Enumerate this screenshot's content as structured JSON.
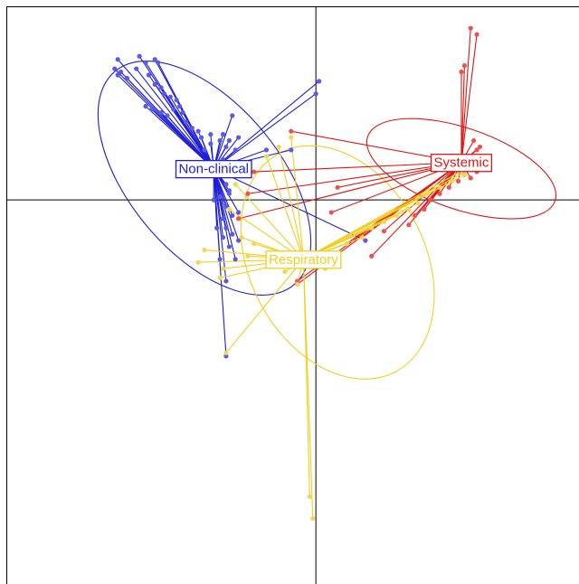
{
  "chart_data": {
    "type": "scatter",
    "title": "",
    "xlabel": "",
    "ylabel": "",
    "grid": false,
    "legend": "none",
    "xlim": [
      -1.0,
      0.85
    ],
    "ylim": [
      -1.23,
      0.62
    ],
    "groups": [
      {
        "name": "Non-clinical",
        "color": "#1f1fd6",
        "point_color": "#5a5ae6",
        "centroid": [
          -0.33,
          0.1
        ],
        "ellipse": {
          "cx": -0.36,
          "cy": 0.07,
          "rx": 0.45,
          "ry": 0.24,
          "angle_deg": 50
        },
        "points": [
          [
            -0.64,
            0.45
          ],
          [
            -0.65,
            0.42
          ],
          [
            -0.64,
            0.4
          ],
          [
            -0.63,
            0.41
          ],
          [
            -0.61,
            0.39
          ],
          [
            -0.58,
            0.42
          ],
          [
            -0.57,
            0.46
          ],
          [
            -0.55,
            0.44
          ],
          [
            -0.52,
            0.45
          ],
          [
            -0.51,
            0.44
          ],
          [
            -0.54,
            0.4
          ],
          [
            -0.52,
            0.37
          ],
          [
            -0.5,
            0.36
          ],
          [
            -0.49,
            0.34
          ],
          [
            -0.47,
            0.33
          ],
          [
            -0.45,
            0.32
          ],
          [
            -0.55,
            0.3
          ],
          [
            -0.53,
            0.29
          ],
          [
            -0.5,
            0.28
          ],
          [
            -0.48,
            0.27
          ],
          [
            -0.46,
            0.29
          ],
          [
            -0.44,
            0.3
          ],
          [
            -0.43,
            0.28
          ],
          [
            -0.42,
            0.25
          ],
          [
            -0.4,
            0.23
          ],
          [
            -0.38,
            0.22
          ],
          [
            -0.37,
            0.2
          ],
          [
            -0.34,
            0.21
          ],
          [
            -0.31,
            0.19
          ],
          [
            -0.29,
            0.17
          ],
          [
            0.01,
            0.38
          ],
          [
            0.0,
            0.34
          ],
          [
            -0.27,
            0.27
          ],
          [
            -0.16,
            0.16
          ],
          [
            -0.3,
            0.13
          ],
          [
            -0.33,
            0.11
          ],
          [
            -0.3,
            0.08
          ],
          [
            -0.29,
            0.05
          ],
          [
            -0.28,
            0.03
          ],
          [
            -0.28,
            0.02
          ],
          [
            -0.31,
            0.01
          ],
          [
            -0.29,
            -0.02
          ],
          [
            -0.27,
            -0.05
          ],
          [
            -0.3,
            -0.06
          ],
          [
            -0.29,
            -0.09
          ],
          [
            -0.27,
            -0.11
          ],
          [
            -0.28,
            -0.15
          ],
          [
            -0.31,
            -0.19
          ],
          [
            -0.29,
            -0.26
          ],
          [
            -0.25,
            -0.13
          ],
          [
            -0.26,
            -0.19
          ],
          [
            -0.25,
            -0.04
          ],
          [
            0.16,
            -0.13
          ],
          [
            -0.08,
            0.16
          ],
          [
            -0.25,
            0.2
          ],
          [
            -0.26,
            0.16
          ],
          [
            -0.28,
            0.19
          ],
          [
            -0.3,
            0.21
          ],
          [
            -0.34,
            0.18
          ],
          [
            -0.36,
            0.16
          ],
          [
            -0.29,
            -0.5
          ],
          [
            -0.24,
            0.11
          ],
          [
            -0.33,
            0.0
          ],
          [
            -0.32,
            -0.09
          ],
          [
            -0.3,
            -0.12
          ]
        ]
      },
      {
        "name": "Systemic",
        "color": "#e01616",
        "point_color": "#f05050",
        "centroid": [
          0.47,
          0.12
        ],
        "ellipse": {
          "cx": 0.47,
          "cy": 0.1,
          "rx": 0.32,
          "ry": 0.13,
          "angle_deg": 19
        },
        "points": [
          [
            0.5,
            0.55
          ],
          [
            0.52,
            0.53
          ],
          [
            0.48,
            0.43
          ],
          [
            0.47,
            0.41
          ],
          [
            0.51,
            0.19
          ],
          [
            0.53,
            0.17
          ],
          [
            0.52,
            0.16
          ],
          [
            0.49,
            0.14
          ],
          [
            0.47,
            0.13
          ],
          [
            0.55,
            0.12
          ],
          [
            0.54,
            0.1
          ],
          [
            0.52,
            0.09
          ],
          [
            0.5,
            0.07
          ],
          [
            0.48,
            0.08
          ],
          [
            0.46,
            0.06
          ],
          [
            0.43,
            0.04
          ],
          [
            0.4,
            0.02
          ],
          [
            0.37,
            0.0
          ],
          [
            0.35,
            -0.03
          ],
          [
            0.32,
            -0.05
          ],
          [
            0.3,
            -0.08
          ],
          [
            -0.2,
            0.09
          ],
          [
            -0.22,
            0.02
          ],
          [
            -0.25,
            -0.06
          ],
          [
            -0.08,
            0.22
          ],
          [
            0.05,
            -0.04
          ],
          [
            0.07,
            0.04
          ],
          [
            -0.06,
            -0.26
          ],
          [
            -0.06,
            -0.27
          ],
          [
            0.1,
            -0.14
          ],
          [
            0.15,
            -0.12
          ],
          [
            0.18,
            -0.18
          ],
          [
            0.22,
            -0.1
          ]
        ]
      },
      {
        "name": "Respiratory",
        "color": "#f2cf21",
        "point_color": "#f3d752",
        "centroid": [
          -0.04,
          -0.19
        ],
        "ellipse": {
          "cx": 0.07,
          "cy": -0.2,
          "rx": 0.4,
          "ry": 0.28,
          "angle_deg": 62
        },
        "points": [
          [
            -0.02,
            -0.95
          ],
          [
            -0.01,
            -1.02
          ],
          [
            -0.29,
            -0.49
          ],
          [
            -0.36,
            -0.16
          ],
          [
            -0.38,
            -0.2
          ],
          [
            -0.24,
            -0.12
          ],
          [
            -0.22,
            -0.18
          ],
          [
            -0.06,
            -0.17
          ],
          [
            -0.03,
            -0.2
          ],
          [
            0.03,
            -0.22
          ],
          [
            0.06,
            -0.18
          ],
          [
            0.1,
            -0.14
          ],
          [
            0.15,
            -0.12
          ],
          [
            0.18,
            -0.09
          ],
          [
            0.22,
            -0.07
          ],
          [
            0.26,
            -0.05
          ],
          [
            0.3,
            -0.03
          ],
          [
            0.33,
            -0.01
          ],
          [
            0.36,
            0.02
          ],
          [
            0.4,
            0.04
          ],
          [
            0.44,
            0.06
          ],
          [
            0.48,
            0.08
          ],
          [
            0.5,
            0.1
          ],
          [
            0.52,
            0.12
          ],
          [
            -0.08,
            0.2
          ],
          [
            -0.12,
            0.17
          ],
          [
            -0.16,
            0.14
          ],
          [
            -0.26,
            0.05
          ],
          [
            -0.28,
            -0.03
          ],
          [
            -0.06,
            -0.27
          ],
          [
            -0.1,
            -0.23
          ],
          [
            -0.15,
            -0.2
          ],
          [
            -0.2,
            -0.14
          ],
          [
            -0.3,
            -0.22
          ],
          [
            -0.31,
            -0.25
          ]
        ]
      }
    ]
  }
}
